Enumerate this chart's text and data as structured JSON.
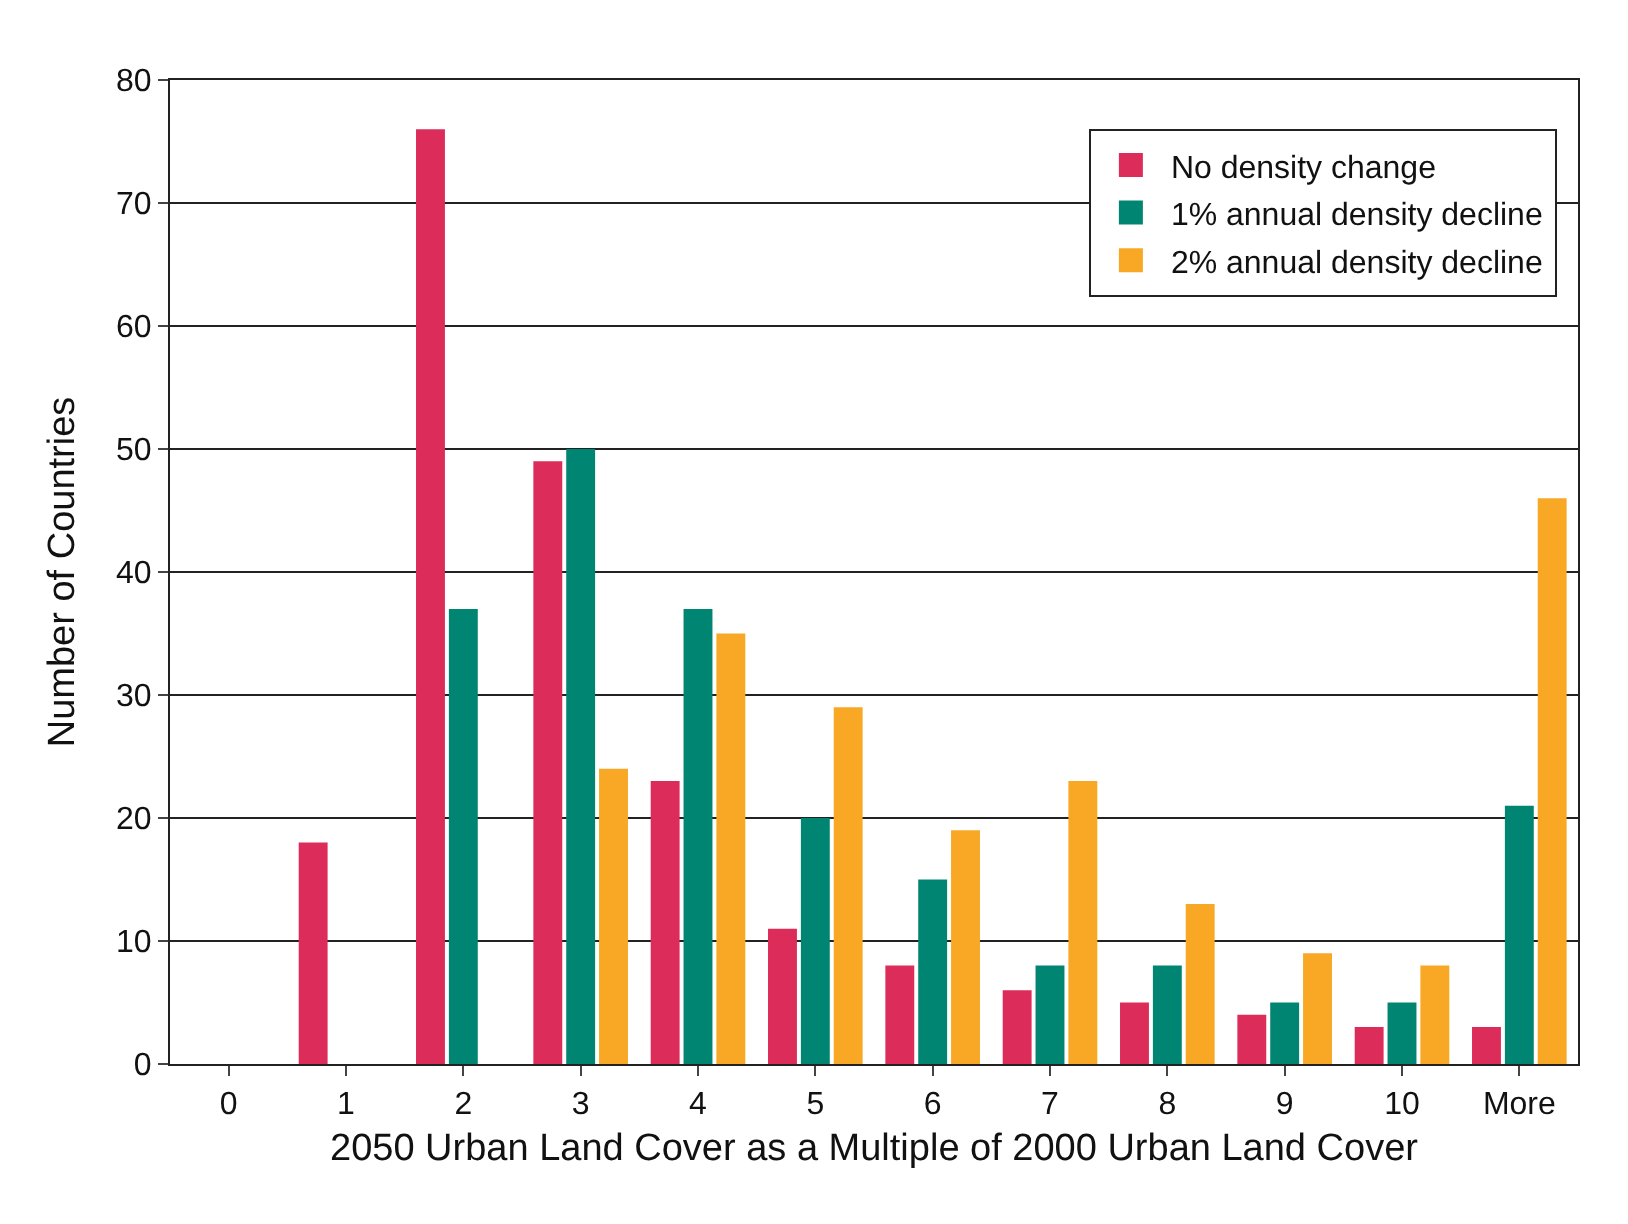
{
  "chart_data": {
    "type": "bar",
    "xlabel": "2050 Urban Land Cover as a Multiple of 2000 Urban Land Cover",
    "ylabel": "Number of Countries",
    "categories": [
      "0",
      "1",
      "2",
      "3",
      "4",
      "5",
      "6",
      "7",
      "8",
      "9",
      "10",
      "More"
    ],
    "series": [
      {
        "name": "No density change",
        "color": "#dc2d5a",
        "values": [
          0,
          18,
          76,
          49,
          23,
          11,
          8,
          6,
          5,
          4,
          3,
          3
        ]
      },
      {
        "name": "1% annual density decline",
        "color": "#008573",
        "values": [
          0,
          0,
          37,
          50,
          37,
          20,
          15,
          8,
          8,
          5,
          5,
          21
        ]
      },
      {
        "name": "2% annual density decline",
        "color": "#f8a824",
        "values": [
          0,
          0,
          0,
          24,
          35,
          29,
          19,
          23,
          13,
          9,
          8,
          46
        ]
      }
    ],
    "ylim": [
      0,
      80
    ],
    "yticks": [
      0,
      10,
      20,
      30,
      40,
      50,
      60,
      70,
      80
    ],
    "grid": "y",
    "legend": "top right"
  }
}
